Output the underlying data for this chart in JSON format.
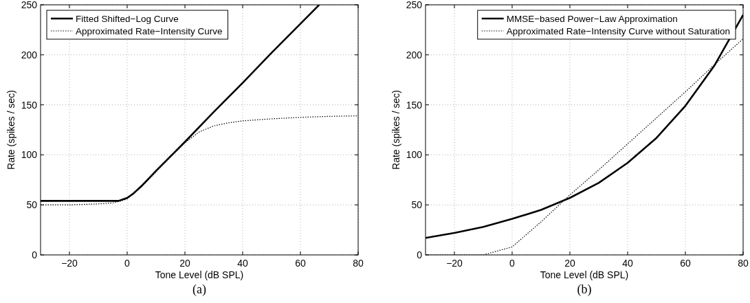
{
  "chart_data": [
    {
      "type": "line",
      "xlabel": "Tone Level (dB SPL)",
      "ylabel": "Rate (spikes / sec)",
      "annotations": [
        "(a)"
      ],
      "xlim": [
        -30,
        80
      ],
      "xticks": [
        -20,
        0,
        20,
        40,
        60,
        80
      ],
      "ylim": [
        0,
        250
      ],
      "yticks": [
        0,
        50,
        100,
        150,
        200,
        250
      ],
      "grid": true,
      "legend": "top left",
      "series": [
        {
          "name": "Fitted Shifted−Log Curve",
          "color": "#000000",
          "line_style": "solid",
          "x": [
            -30,
            -10,
            -5,
            -3,
            -2,
            0,
            2,
            5,
            10,
            20,
            30,
            40,
            50,
            60,
            66.5
          ],
          "values": [
            54,
            54,
            54,
            54,
            55,
            57,
            61,
            69,
            84,
            113,
            143,
            172,
            202,
            231,
            250
          ]
        },
        {
          "name": "Approximated Rate−Intensity Curve",
          "color": "#000000",
          "line_style": "dotted",
          "x": [
            -30,
            -20,
            -10,
            -5,
            -2,
            0,
            2,
            5,
            10,
            15,
            20,
            25,
            30,
            35,
            40,
            50,
            60,
            70,
            80
          ],
          "values": [
            50,
            50,
            51,
            52,
            54,
            56,
            61,
            68,
            83,
            98,
            112,
            123,
            129,
            132,
            134,
            136,
            137.5,
            138.5,
            139
          ]
        }
      ]
    },
    {
      "type": "line",
      "xlabel": "Tone Level (dB SPL)",
      "ylabel": "Rate (spikes / sec)",
      "annotations": [
        "(b)"
      ],
      "xlim": [
        -30,
        80
      ],
      "xticks": [
        -20,
        0,
        20,
        40,
        60,
        80
      ],
      "ylim": [
        0,
        250
      ],
      "yticks": [
        0,
        50,
        100,
        150,
        200,
        250
      ],
      "grid": true,
      "legend": "top right",
      "series": [
        {
          "name": "MMSE−based Power−Law Approximation",
          "color": "#000000",
          "line_style": "solid",
          "x": [
            -30,
            -20,
            -10,
            0,
            10,
            20,
            30,
            40,
            50,
            60,
            70,
            80
          ],
          "values": [
            17,
            22,
            28,
            36,
            45,
            57,
            72,
            92,
            117,
            149,
            189,
            240
          ]
        },
        {
          "name": "Approximated Rate−Intensity Curve without Saturation",
          "color": "#000000",
          "line_style": "dotted",
          "x": [
            -30,
            -20,
            -10,
            0,
            10,
            20,
            30,
            40,
            50,
            60,
            70,
            80
          ],
          "values": [
            0,
            0,
            0,
            8,
            33,
            60,
            85,
            111,
            137,
            163,
            190,
            216
          ]
        }
      ]
    }
  ]
}
